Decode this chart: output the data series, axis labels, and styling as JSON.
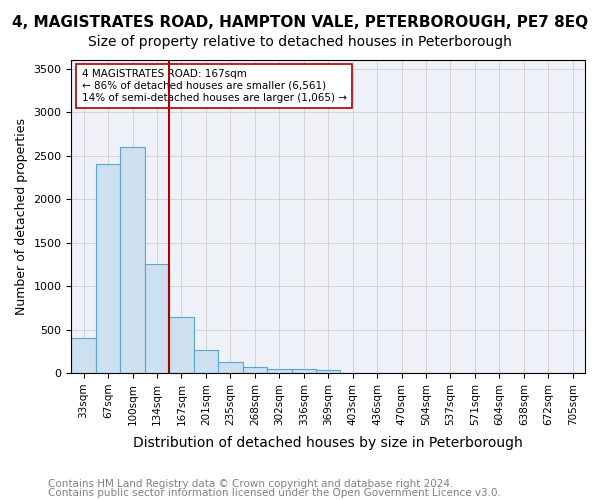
{
  "title1": "4, MAGISTRATES ROAD, HAMPTON VALE, PETERBOROUGH, PE7 8EQ",
  "title2": "Size of property relative to detached houses in Peterborough",
  "xlabel": "Distribution of detached houses by size in Peterborough",
  "ylabel": "Number of detached properties",
  "footnote1": "Contains HM Land Registry data © Crown copyright and database right 2024.",
  "footnote2": "Contains public sector information licensed under the Open Government Licence v3.0.",
  "bins": [
    "33sqm",
    "67sqm",
    "100sqm",
    "134sqm",
    "167sqm",
    "201sqm",
    "235sqm",
    "268sqm",
    "302sqm",
    "336sqm",
    "369sqm",
    "403sqm",
    "436sqm",
    "470sqm",
    "504sqm",
    "537sqm",
    "571sqm",
    "604sqm",
    "638sqm",
    "672sqm",
    "705sqm"
  ],
  "bar_heights": [
    400,
    2400,
    2600,
    1250,
    650,
    270,
    125,
    70,
    50,
    50,
    40,
    5,
    0,
    0,
    0,
    0,
    0,
    0,
    0,
    0,
    0
  ],
  "bar_color": "#cce0f0",
  "bar_edgecolor": "#5ba3d0",
  "ref_line_color": "#aa0000",
  "ref_line_bin": "167sqm",
  "annotation_text": "4 MAGISTRATES ROAD: 167sqm\n← 86% of detached houses are smaller (6,561)\n14% of semi-detached houses are larger (1,065) →",
  "annotation_box_edgecolor": "#aa0000",
  "annotation_box_facecolor": "white",
  "ylim": [
    0,
    3600
  ],
  "yticks": [
    0,
    500,
    1000,
    1500,
    2000,
    2500,
    3000,
    3500
  ],
  "title1_fontsize": 11,
  "title2_fontsize": 10,
  "footnote_fontsize": 7.5,
  "xlabel_fontsize": 10,
  "ylabel_fontsize": 9,
  "bar_tick_fontsize": 7.5,
  "ytick_fontsize": 8
}
